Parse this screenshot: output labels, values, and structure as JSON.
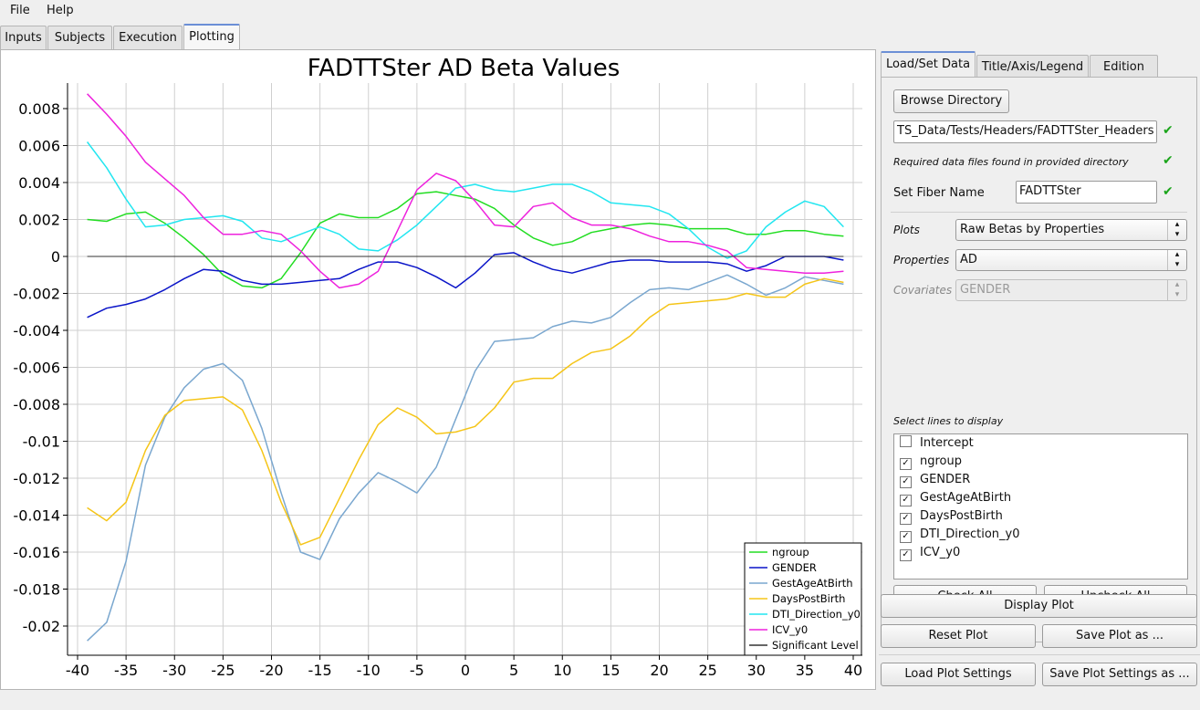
{
  "menu": {
    "file": "File",
    "help": "Help"
  },
  "main_tabs": [
    "Inputs",
    "Subjects",
    "Execution",
    "Plotting"
  ],
  "right_tabs": [
    "Load/Set Data",
    "Title/Axis/Legend",
    "Edition"
  ],
  "panel": {
    "browse_label": "Browse Directory",
    "directory_value": "TS_Data/Tests/Headers/FADTTSter_Headers",
    "found_message": "Required data files found in provided directory",
    "fiber_name_label": "Set Fiber Name",
    "fiber_name_value": "FADTTSter",
    "plots_label": "Plots",
    "plots_value": "Raw Betas by Properties",
    "properties_label": "Properties",
    "properties_value": "AD",
    "covariates_label": "Covariates",
    "covariates_value": "GENDER",
    "select_lines_label": "Select lines to display",
    "lines": [
      {
        "name": "Intercept",
        "checked": false
      },
      {
        "name": "ngroup",
        "checked": true
      },
      {
        "name": "GENDER",
        "checked": true
      },
      {
        "name": "GestAgeAtBirth",
        "checked": true
      },
      {
        "name": "DaysPostBirth",
        "checked": true
      },
      {
        "name": "DTI_Direction_y0",
        "checked": true
      },
      {
        "name": "ICV_y0",
        "checked": true
      }
    ],
    "check_all": "Check All",
    "uncheck_all": "Uncheck All",
    "display_plot": "Display Plot",
    "reset_plot": "Reset Plot",
    "save_plot_as": "Save Plot as ...",
    "load_settings": "Load Plot Settings",
    "save_settings": "Save Plot Settings as ..."
  },
  "chart_data": {
    "type": "line",
    "title": "FADTTSter AD Beta Values",
    "xlim": [
      -40,
      40
    ],
    "ylim": [
      -0.021,
      0.0095
    ],
    "xticks": [
      -40,
      -35,
      -30,
      -25,
      -20,
      -15,
      -10,
      -5,
      0,
      5,
      10,
      15,
      20,
      25,
      30,
      35,
      40
    ],
    "xtick_labels": [
      "-40",
      "-35",
      "-30",
      "-25",
      "-20",
      "-15",
      "-10",
      "-5",
      "0",
      "5",
      "10",
      "15",
      "20",
      "25",
      "30",
      "35",
      "40"
    ],
    "yticks": [
      0.008,
      0.006,
      0.004,
      0.002,
      0,
      -0.002,
      -0.004,
      -0.006,
      -0.008,
      -0.01,
      -0.012,
      -0.014,
      -0.016,
      -0.018,
      -0.02
    ],
    "ytick_labels": [
      "0.008",
      "0.006",
      "0.004",
      "0.002",
      "0",
      "-0.002",
      "-0.004",
      "-0.006",
      "-0.008",
      "-0.01",
      "-0.012",
      "-0.014",
      "-0.016",
      "-0.018",
      "-0.02"
    ],
    "grid": true,
    "legend_position": "bottom-right",
    "x": [
      -39,
      -37,
      -35,
      -33,
      -31,
      -29,
      -27,
      -25,
      -23,
      -21,
      -19,
      -17,
      -15,
      -13,
      -11,
      -9,
      -7,
      -5,
      -3,
      -1,
      1,
      3,
      5,
      7,
      9,
      11,
      13,
      15,
      17,
      19,
      21,
      23,
      25,
      27,
      29,
      31,
      33,
      35,
      37,
      39
    ],
    "series": [
      {
        "name": "ngroup",
        "color": "#22dd22",
        "values": [
          0.002,
          0.0019,
          0.0023,
          0.0024,
          0.0018,
          0.001,
          0.0001,
          -0.001,
          -0.0016,
          -0.0017,
          -0.0012,
          0.0002,
          0.0018,
          0.0023,
          0.0021,
          0.0021,
          0.0026,
          0.0034,
          0.0035,
          0.0033,
          0.0031,
          0.0026,
          0.0017,
          0.001,
          0.0006,
          0.0008,
          0.0013,
          0.0015,
          0.0017,
          0.0018,
          0.0017,
          0.0015,
          0.0015,
          0.0015,
          0.0012,
          0.0012,
          0.0014,
          0.0014,
          0.0012,
          0.0011
        ]
      },
      {
        "name": "GENDER",
        "color": "#0a14c8",
        "values": [
          -0.0033,
          -0.0028,
          -0.0026,
          -0.0023,
          -0.0018,
          -0.0012,
          -0.0007,
          -0.0008,
          -0.0013,
          -0.0015,
          -0.0015,
          -0.0014,
          -0.0013,
          -0.0012,
          -0.0007,
          -0.0003,
          -0.0003,
          -0.0006,
          -0.0011,
          -0.0017,
          -0.0009,
          0.0001,
          0.0002,
          -0.0003,
          -0.0007,
          -0.0009,
          -0.0006,
          -0.0003,
          -0.0002,
          -0.0002,
          -0.0003,
          -0.0003,
          -0.0003,
          -0.0004,
          -0.0008,
          -0.0005,
          0.0,
          0.0,
          0.0,
          -0.0002
        ]
      },
      {
        "name": "GestAgeAtBirth",
        "color": "#7aa7cf",
        "values": [
          -0.0208,
          -0.0198,
          -0.0165,
          -0.0113,
          -0.0087,
          -0.0071,
          -0.0061,
          -0.0058,
          -0.0067,
          -0.0093,
          -0.0128,
          -0.016,
          -0.0164,
          -0.0142,
          -0.0128,
          -0.0117,
          -0.0122,
          -0.0128,
          -0.0114,
          -0.0088,
          -0.0062,
          -0.0046,
          -0.0045,
          -0.0044,
          -0.0038,
          -0.0035,
          -0.0036,
          -0.0033,
          -0.0025,
          -0.0018,
          -0.0017,
          -0.0018,
          -0.0014,
          -0.001,
          -0.0015,
          -0.0021,
          -0.0017,
          -0.0011,
          -0.0013,
          -0.0015
        ]
      },
      {
        "name": "DaysPostBirth",
        "color": "#f5c518",
        "values": [
          -0.0136,
          -0.0143,
          -0.0133,
          -0.0105,
          -0.0086,
          -0.0078,
          -0.0077,
          -0.0076,
          -0.0083,
          -0.0105,
          -0.0133,
          -0.0156,
          -0.0152,
          -0.0131,
          -0.011,
          -0.0091,
          -0.0082,
          -0.0087,
          -0.0096,
          -0.0095,
          -0.0092,
          -0.0082,
          -0.0068,
          -0.0066,
          -0.0066,
          -0.0058,
          -0.0052,
          -0.005,
          -0.0043,
          -0.0033,
          -0.0026,
          -0.0025,
          -0.0024,
          -0.0023,
          -0.002,
          -0.0022,
          -0.0022,
          -0.0015,
          -0.0012,
          -0.0014
        ]
      },
      {
        "name": "DTI_Direction_y0",
        "color": "#22e6f0",
        "values": [
          0.0062,
          0.0048,
          0.0031,
          0.0016,
          0.0017,
          0.002,
          0.0021,
          0.0022,
          0.0019,
          0.001,
          0.0008,
          0.0012,
          0.0016,
          0.0012,
          0.0004,
          0.0003,
          0.0009,
          0.0017,
          0.0027,
          0.0037,
          0.0039,
          0.0036,
          0.0035,
          0.0037,
          0.0039,
          0.0039,
          0.0035,
          0.0029,
          0.0028,
          0.0027,
          0.0023,
          0.0015,
          0.0005,
          -0.0001,
          0.0003,
          0.0016,
          0.0024,
          0.003,
          0.0027,
          0.0016
        ]
      },
      {
        "name": "ICV_y0",
        "color": "#ee22dd",
        "values": [
          0.0088,
          0.0077,
          0.0065,
          0.0051,
          0.0042,
          0.0033,
          0.0021,
          0.0012,
          0.0012,
          0.0014,
          0.0012,
          0.0003,
          -0.0008,
          -0.0017,
          -0.0015,
          -0.0008,
          0.0014,
          0.0036,
          0.0045,
          0.0041,
          0.003,
          0.0017,
          0.0016,
          0.0027,
          0.0029,
          0.0021,
          0.0017,
          0.0017,
          0.0015,
          0.0011,
          0.0008,
          0.0008,
          0.0006,
          0.0003,
          -0.0006,
          -0.0007,
          -0.0008,
          -0.0009,
          -0.0009,
          -0.0008
        ]
      },
      {
        "name": "Significant Level",
        "color": "#333333",
        "values": [
          0,
          0,
          0,
          0,
          0,
          0,
          0,
          0,
          0,
          0,
          0,
          0,
          0,
          0,
          0,
          0,
          0,
          0,
          0,
          0,
          0,
          0,
          0,
          0,
          0,
          0,
          0,
          0,
          0,
          0,
          0,
          0,
          0,
          0,
          0,
          0,
          0,
          0,
          0,
          0
        ]
      }
    ]
  }
}
